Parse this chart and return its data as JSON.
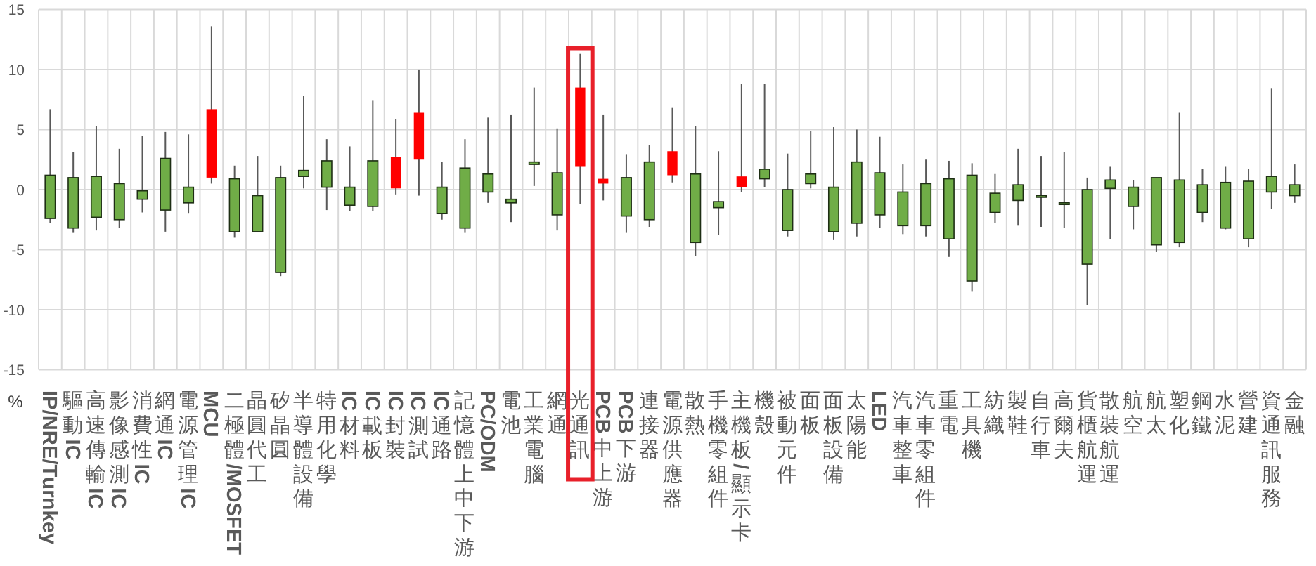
{
  "chart_data": {
    "type": "candlestick",
    "categories": [
      "IP/NRE/Turnkey",
      "驅動IC",
      "高速傳輸IC",
      "影像感測IC",
      "消費性IC",
      "網通IC",
      "電源管理IC",
      "MCU",
      "二極體/MOSFET",
      "晶圓代工",
      "矽晶圓",
      "半導體設備",
      "特用化學",
      "IC材料",
      "IC載板",
      "IC封裝",
      "IC測試",
      "IC通路",
      "記憶體上中下游",
      "PC/ODM",
      "電池",
      "工業電腦",
      "網通",
      "光通訊",
      "PCB中上游",
      "PCB下游",
      "連接器",
      "電源供應器",
      "散熱",
      "手機零組件",
      "主機板/顯示卡",
      "機殼",
      "被動元件",
      "面板",
      "面板設備",
      "太陽能",
      "LED",
      "汽車整車",
      "汽車零組件",
      "重電",
      "工具機",
      "紡織",
      "製鞋",
      "自行車",
      "高爾夫",
      "貨櫃航運",
      "散裝航運",
      "航空",
      "航太",
      "塑化",
      "鋼鐵",
      "水泥",
      "營建",
      "資通訊服務",
      "金融"
    ],
    "ohlc": [
      [
        1.2,
        6.7,
        -2.8,
        -2.4
      ],
      [
        1.0,
        3.1,
        -3.6,
        -3.2
      ],
      [
        1.1,
        5.3,
        -3.4,
        -2.3
      ],
      [
        0.5,
        3.4,
        -3.2,
        -2.5
      ],
      [
        -0.1,
        4.5,
        -1.9,
        -0.8
      ],
      [
        2.6,
        4.8,
        -3.5,
        -1.7
      ],
      [
        0.2,
        4.6,
        -2.0,
        -1.1
      ],
      [
        1.0,
        13.6,
        0.5,
        6.7
      ],
      [
        0.9,
        2.0,
        -4.0,
        -3.5
      ],
      [
        -0.5,
        2.8,
        -3.5,
        -3.5
      ],
      [
        1.0,
        2.0,
        -7.2,
        -6.9
      ],
      [
        1.6,
        7.8,
        0.1,
        1.1
      ],
      [
        2.4,
        4.2,
        -1.7,
        0.2
      ],
      [
        0.2,
        3.6,
        -1.8,
        -1.3
      ],
      [
        2.4,
        7.4,
        -1.8,
        -1.4
      ],
      [
        0.1,
        5.9,
        -0.4,
        2.7
      ],
      [
        2.5,
        10.0,
        -0.5,
        6.4
      ],
      [
        0.2,
        2.3,
        -2.5,
        -2.0
      ],
      [
        1.8,
        4.2,
        -3.6,
        -3.2
      ],
      [
        1.3,
        6.0,
        -1.1,
        -0.2
      ],
      [
        -0.8,
        6.2,
        -2.7,
        -1.1
      ],
      [
        2.3,
        8.5,
        0.3,
        2.1
      ],
      [
        1.4,
        5.1,
        -3.4,
        -2.1
      ],
      [
        1.9,
        11.3,
        -1.2,
        8.5
      ],
      [
        0.5,
        6.2,
        -0.9,
        0.9
      ],
      [
        1.0,
        2.9,
        -3.6,
        -2.2
      ],
      [
        2.3,
        3.7,
        -3.1,
        -2.5
      ],
      [
        1.2,
        6.8,
        0.6,
        3.2
      ],
      [
        1.3,
        5.3,
        -5.5,
        -4.4
      ],
      [
        -1.0,
        3.2,
        -3.8,
        -1.5
      ],
      [
        0.2,
        8.8,
        -0.2,
        1.1
      ],
      [
        1.7,
        8.8,
        0.2,
        0.9
      ],
      [
        0.0,
        3.0,
        -3.9,
        -3.4
      ],
      [
        1.3,
        4.9,
        0.1,
        0.5
      ],
      [
        0.2,
        5.2,
        -4.2,
        -3.5
      ],
      [
        2.3,
        5.0,
        -3.9,
        -2.8
      ],
      [
        1.4,
        4.4,
        -3.2,
        -2.1
      ],
      [
        -0.2,
        2.1,
        -3.7,
        -3.0
      ],
      [
        0.5,
        2.5,
        -3.9,
        -3.0
      ],
      [
        0.9,
        2.4,
        -5.6,
        -4.1
      ],
      [
        1.2,
        2.2,
        -8.5,
        -7.6
      ],
      [
        -0.3,
        1.3,
        -2.8,
        -1.9
      ],
      [
        0.4,
        3.4,
        -3.0,
        -0.9
      ],
      [
        -0.5,
        2.8,
        -3.1,
        -0.6
      ],
      [
        -1.1,
        3.1,
        -3.2,
        -1.2
      ],
      [
        0.0,
        1.0,
        -9.6,
        -6.2
      ],
      [
        0.8,
        1.9,
        -4.1,
        0.1
      ],
      [
        0.2,
        0.8,
        -3.3,
        -1.4
      ],
      [
        1.0,
        1.0,
        -5.2,
        -4.6
      ],
      [
        0.8,
        6.4,
        -4.8,
        -4.4
      ],
      [
        0.4,
        1.7,
        -2.7,
        -1.9
      ],
      [
        0.6,
        1.9,
        -3.3,
        -3.2
      ],
      [
        0.7,
        1.7,
        -4.8,
        -4.1
      ],
      [
        1.1,
        8.4,
        -1.6,
        -0.2
      ],
      [
        0.4,
        2.1,
        -1.1,
        -0.5
      ]
    ],
    "colors": [
      "#70ad47",
      "#70ad47",
      "#70ad47",
      "#70ad47",
      "#70ad47",
      "#70ad47",
      "#70ad47",
      "#ff0000",
      "#70ad47",
      "#70ad47",
      "#70ad47",
      "#70ad47",
      "#70ad47",
      "#70ad47",
      "#70ad47",
      "#ff0000",
      "#ff0000",
      "#70ad47",
      "#70ad47",
      "#70ad47",
      "#70ad47",
      "#70ad47",
      "#70ad47",
      "#ff0000",
      "#ff0000",
      "#70ad47",
      "#70ad47",
      "#ff0000",
      "#70ad47",
      "#70ad47",
      "#ff0000",
      "#70ad47",
      "#70ad47",
      "#70ad47",
      "#70ad47",
      "#70ad47",
      "#70ad47",
      "#70ad47",
      "#70ad47",
      "#70ad47",
      "#70ad47",
      "#70ad47",
      "#70ad47",
      "#70ad47",
      "#70ad47",
      "#70ad47",
      "#70ad47",
      "#70ad47",
      "#70ad47",
      "#70ad47",
      "#70ad47",
      "#70ad47",
      "#70ad47",
      "#70ad47",
      "#70ad47"
    ],
    "ylabel": "%",
    "ylim": [
      -15,
      15
    ],
    "yticks": [
      -15,
      -10,
      -5,
      0,
      5,
      10,
      15
    ],
    "grid": true,
    "bands": [
      {
        "axis": "x",
        "from": "光通訊",
        "to": "光通訊",
        "color": "#e8202a"
      }
    ]
  }
}
